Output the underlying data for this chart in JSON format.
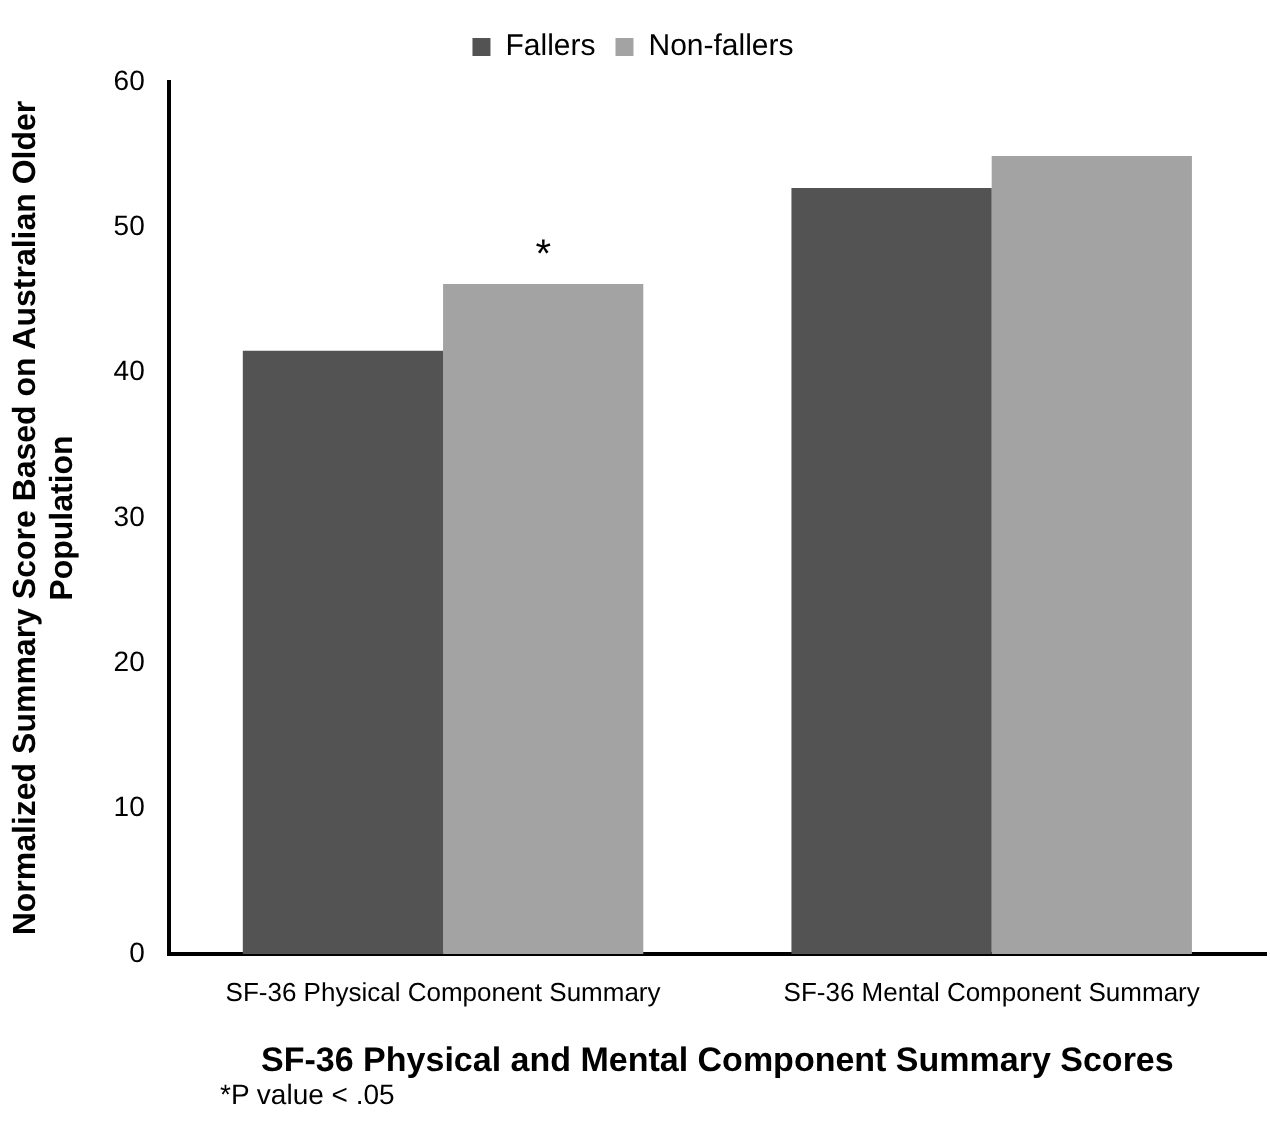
{
  "chart_data": {
    "type": "bar",
    "xlabel": "SF-36 Physical and Mental Component Summary Scores",
    "ylabel": "Normalized Summary Score Based on Australian Older Population",
    "categories": [
      "SF-36 Physical Component Summary",
      "SF-36 Mental Component Summary"
    ],
    "series": [
      {
        "name": "Fallers",
        "color": "#535353",
        "values": [
          41.5,
          52.7
        ]
      },
      {
        "name": "Non-fallers",
        "color": "#a3a3a3",
        "values": [
          46.1,
          54.9
        ]
      }
    ],
    "ylim": [
      0,
      60
    ],
    "yticks": [
      0,
      10,
      20,
      30,
      40,
      50,
      60
    ],
    "grid": false,
    "legend": "top",
    "annotations": [
      {
        "text": "*",
        "x": "SF-36 Physical Component Summary",
        "y": 46.1
      },
      "*P value < .05"
    ]
  }
}
